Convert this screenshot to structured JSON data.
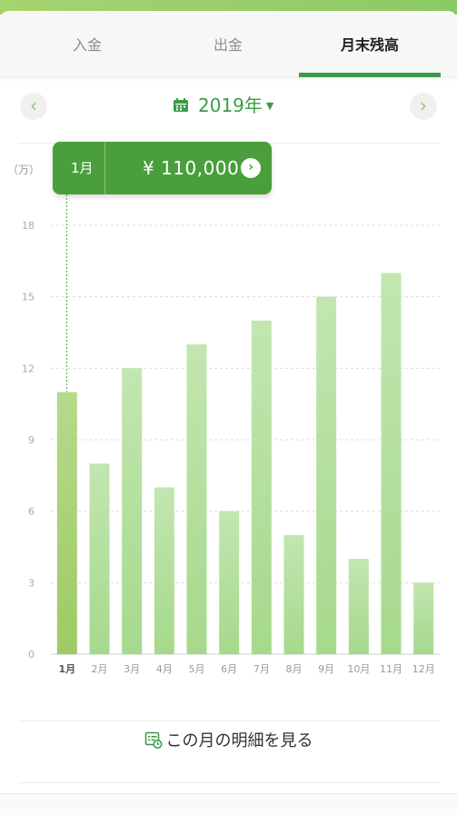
{
  "tabs": [
    {
      "label": "入金"
    },
    {
      "label": "出金"
    },
    {
      "label": "月末残高"
    }
  ],
  "year_label": "2019年",
  "unit_label": "（万）",
  "tooltip": {
    "month": "1月",
    "value": "¥ 110,000"
  },
  "detail_link": "この月の明細を見る",
  "colors": {
    "accent": "#3d9a4a",
    "bar": "#b4dea0",
    "bar_selected": "#a9cf7a",
    "tooltip": "#4a9e3c"
  },
  "chart_data": {
    "type": "bar",
    "categories": [
      "1月",
      "2月",
      "3月",
      "4月",
      "5月",
      "6月",
      "7月",
      "8月",
      "9月",
      "10月",
      "11月",
      "12月"
    ],
    "values": [
      11,
      8,
      12,
      7,
      13,
      6,
      14,
      5,
      15,
      4,
      16,
      3
    ],
    "yticks": [
      0,
      3,
      6,
      9,
      12,
      15,
      18
    ],
    "ylim": [
      0,
      18
    ],
    "selected_index": 0,
    "grid": true
  }
}
